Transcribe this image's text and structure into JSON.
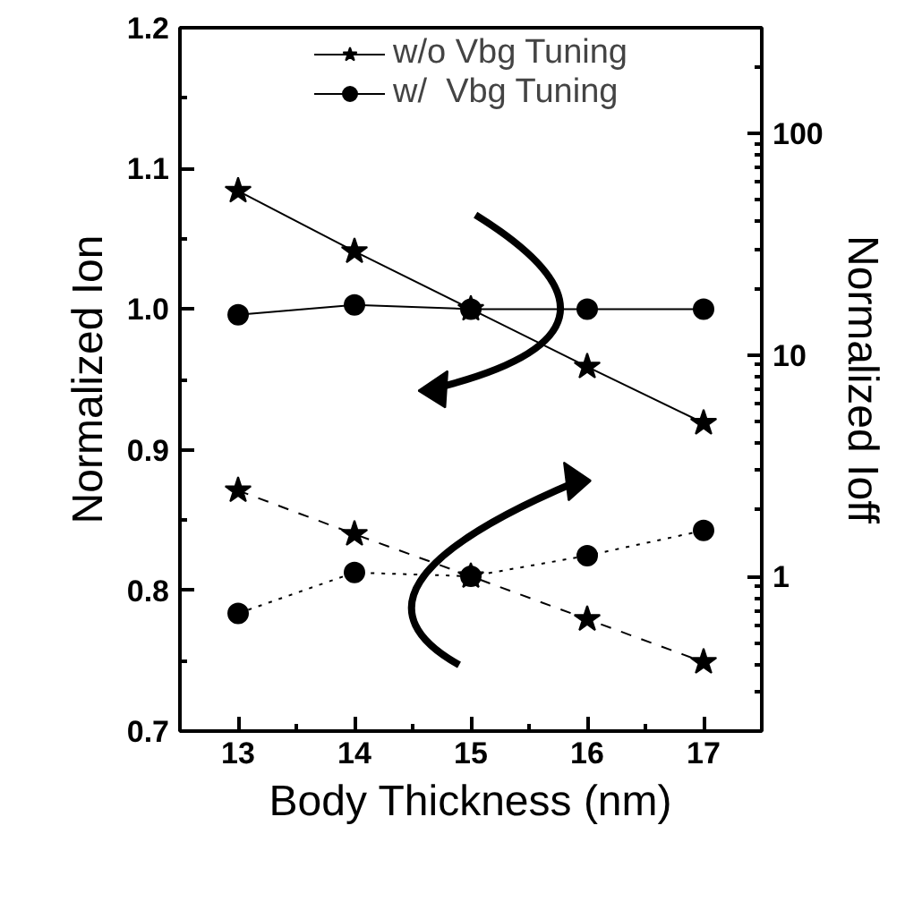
{
  "chart_data": {
    "type": "line",
    "xlabel": "Body Thickness (nm)",
    "ylabel": "Normalized Ion",
    "y2label": "Normalized Ioff",
    "x": [
      13,
      14,
      15,
      16,
      17
    ],
    "xlim": [
      12.5,
      17.5
    ],
    "xticks": [
      13,
      14,
      15,
      16,
      17
    ],
    "ylim": [
      0.7,
      1.2
    ],
    "yticks": [
      {
        "value": 0.7,
        "label": "0.7"
      },
      {
        "value": 0.8,
        "label": "0.8"
      },
      {
        "value": 0.9,
        "label": "0.9"
      },
      {
        "value": 1.0,
        "label": "1.0"
      },
      {
        "value": 1.1,
        "label": "1.1"
      },
      {
        "value": 1.2,
        "label": "1.2"
      }
    ],
    "y2lim": [
      0.2,
      300
    ],
    "y2ticks": [
      1,
      10,
      100
    ],
    "log": "y2",
    "grid": false,
    "legend": "top",
    "series": [
      {
        "name": "w/o Vbg Tuning",
        "color": "#000000",
        "marker": "star",
        "line_style": "solid",
        "values": [
          1.084,
          1.041,
          1.0,
          0.959,
          0.919
        ]
      },
      {
        "name": "w/  Vbg Tuning",
        "color": "#000000",
        "marker": "circle",
        "line_style": "solid",
        "values": [
          0.996,
          1.003,
          1.0,
          1.0,
          1.0
        ]
      },
      {
        "color": "#000000",
        "marker": "star",
        "line_style": "dashed",
        "axis": "y2",
        "values": [
          2.44,
          1.55,
          1.0,
          0.64,
          0.41
        ]
      },
      {
        "color": "#000000",
        "marker": "circle",
        "line_style": "dotted",
        "axis": "y2",
        "values": [
          0.68,
          1.04,
          1.0,
          1.24,
          1.61
        ]
      }
    ]
  }
}
